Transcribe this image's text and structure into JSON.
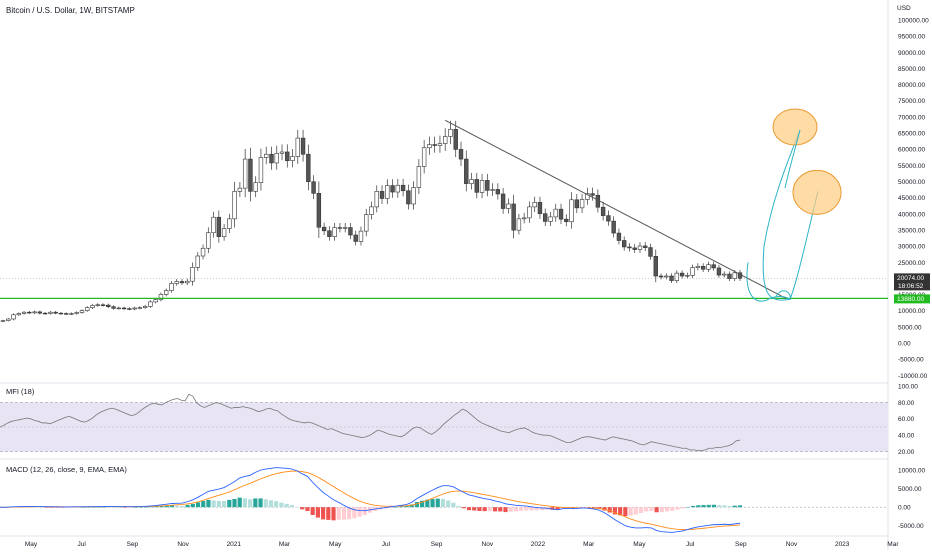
{
  "chart_data": {
    "type": "candlestick",
    "title": "Bitcoin / U.S. Dollar, 1W, BITSTAMP",
    "currency": "USD",
    "price_ticks": [
      100000,
      95000,
      90000,
      85000,
      80000,
      75000,
      70000,
      65000,
      60000,
      55000,
      50000,
      45000,
      40000,
      35000,
      30000,
      25000,
      20000,
      15000,
      10000,
      5000,
      0,
      -5000,
      -10000
    ],
    "price_ylim": [
      -12000,
      105000
    ],
    "x_ticks": [
      "May",
      "Jul",
      "Sep",
      "Nov",
      "2021",
      "Mar",
      "May",
      "Jul",
      "Sep",
      "Nov",
      "2022",
      "Mar",
      "May",
      "Jul",
      "Sep",
      "Nov",
      "2023",
      "Mar"
    ],
    "last_price": "20074.00",
    "countdown": "18:06:52",
    "support_level": "13880.00",
    "candles_close": [
      7000,
      7500,
      8800,
      9200,
      9600,
      9400,
      9700,
      9300,
      9200,
      9600,
      9300,
      9200,
      9100,
      9200,
      9500,
      10100,
      11000,
      11700,
      11900,
      11800,
      11300,
      10800,
      10900,
      10700,
      10600,
      10900,
      11000,
      11400,
      12800,
      13500,
      15100,
      16300,
      18500,
      19100,
      18700,
      19200,
      23500,
      27000,
      29400,
      34200,
      39000,
      33000,
      35500,
      38500,
      47000,
      48000,
      57000,
      47000,
      49700,
      57500,
      58500,
      55800,
      58800,
      59200,
      56500,
      57800,
      63500,
      58500,
      50000,
      46400,
      35900,
      34800,
      33000,
      35800,
      35600,
      35800,
      33500,
      31500,
      34700,
      39800,
      42200,
      47000,
      44800,
      48800,
      46800,
      48900,
      47200,
      43100,
      48200,
      54700,
      60500,
      61500,
      61200,
      61800,
      64000,
      66200,
      60000,
      57000,
      49400,
      50700,
      46700,
      50400,
      47300,
      47600,
      46200,
      41700,
      43100,
      35000,
      38500,
      38800,
      42200,
      43600,
      40100,
      37700,
      39100,
      41500,
      38400,
      37600,
      44400,
      41900,
      44500,
      46300,
      45800,
      42100,
      39500,
      37800,
      34100,
      31800,
      29800,
      29500,
      29000,
      30100,
      29600,
      26900,
      20800,
      20500,
      20800,
      19400,
      21700,
      20800,
      21000,
      23400,
      23800,
      22900,
      24300,
      23300,
      21100,
      21400,
      20000,
      21800,
      20074
    ],
    "annotation_line": {
      "from_price": 69000,
      "to_price": 13880
    },
    "projections": [
      {
        "circle_price": 66000
      },
      {
        "circle_price": 47000
      }
    ],
    "mfi": {
      "label": "MFI (18)",
      "ticks": [
        100,
        80,
        60,
        40,
        20
      ],
      "ylim": [
        12,
        104
      ],
      "band": [
        20,
        80
      ],
      "mid": 50,
      "values": [
        50,
        52,
        55,
        57,
        58,
        59,
        60,
        61,
        60,
        58,
        57,
        55,
        55,
        54,
        56,
        58,
        60,
        62,
        63,
        61,
        59,
        57,
        56,
        58,
        61,
        65,
        68,
        70,
        72,
        73,
        72,
        70,
        68,
        66,
        64,
        65,
        68,
        72,
        75,
        78,
        79,
        78,
        77,
        80,
        82,
        84,
        85,
        83,
        82,
        90,
        88,
        80,
        76,
        74,
        76,
        78,
        80,
        79,
        77,
        75,
        73,
        74,
        74,
        75,
        74,
        73,
        71,
        69,
        70,
        72,
        73,
        71,
        70,
        66,
        63,
        60,
        58,
        57,
        56,
        55,
        56,
        55,
        53,
        51,
        49,
        47,
        48,
        46,
        44,
        42,
        41,
        40,
        39,
        38,
        37,
        38,
        40,
        43,
        46,
        45,
        43,
        41,
        40,
        39,
        38,
        40,
        44,
        48,
        50,
        49,
        46,
        43,
        41,
        44,
        48,
        53,
        57,
        61,
        65,
        68,
        72,
        70,
        66,
        62,
        58,
        55,
        53,
        51,
        49,
        47,
        45,
        44,
        43,
        45,
        47,
        48,
        49,
        47,
        44,
        42,
        41,
        40,
        40,
        39,
        37,
        35,
        33,
        31,
        31,
        33,
        35,
        37,
        38,
        38,
        37,
        36,
        35,
        34,
        36,
        38,
        37,
        36,
        35,
        34,
        33,
        31,
        29,
        28,
        30,
        32,
        31,
        30,
        29,
        28,
        27,
        26,
        25,
        24,
        24,
        22,
        22,
        21,
        21,
        22,
        24,
        24,
        25,
        25,
        26,
        27,
        29,
        33,
        34
      ]
    },
    "macd": {
      "label": "MACD (12, 26, close, 9, EMA, EMA)",
      "ticks": [
        10000,
        5000,
        0,
        -5000
      ],
      "ylim": [
        -7500,
        13000
      ],
      "macd_line": [
        0,
        -30,
        60,
        150,
        180,
        200,
        200,
        180,
        160,
        130,
        110,
        90,
        80,
        80,
        90,
        100,
        110,
        130,
        150,
        170,
        180,
        170,
        160,
        150,
        140,
        140,
        150,
        170,
        250,
        350,
        480,
        650,
        820,
        1000,
        1060,
        1120,
        1500,
        2000,
        2700,
        3500,
        4300,
        4600,
        4900,
        5300,
        6100,
        6900,
        7900,
        8300,
        8600,
        9400,
        10000,
        10300,
        10500,
        10700,
        10600,
        10500,
        10300,
        9800,
        9000,
        8300,
        6700,
        5300,
        4000,
        3000,
        2000,
        1300,
        500,
        -200,
        -700,
        -900,
        -950,
        -700,
        -500,
        -300,
        -100,
        100,
        300,
        500,
        700,
        1300,
        2300,
        3100,
        3900,
        4600,
        5300,
        5800,
        5800,
        5500,
        4700,
        4000,
        3300,
        3000,
        2600,
        2300,
        2100,
        1700,
        1400,
        900,
        700,
        500,
        400,
        300,
        100,
        -100,
        -200,
        -300,
        -500,
        -700,
        -400,
        -300,
        -400,
        -300,
        -200,
        -300,
        -500,
        -800,
        -1500,
        -2400,
        -3400,
        -4200,
        -5000,
        -5400,
        -5600,
        -5600,
        -5500,
        -5600,
        -6300,
        -6600,
        -6700,
        -6800,
        -6600,
        -6400,
        -6000,
        -5600,
        -5300,
        -5100,
        -4900,
        -4700,
        -4700,
        -4600,
        -4700,
        -4500,
        -4300
      ],
      "signal_line": [
        0,
        -20,
        0,
        40,
        70,
        100,
        120,
        130,
        140,
        140,
        135,
        125,
        115,
        108,
        104,
        103,
        104,
        109,
        117,
        127,
        137,
        144,
        148,
        148,
        147,
        146,
        147,
        152,
        172,
        208,
        262,
        340,
        436,
        549,
        651,
        745,
        896,
        1117,
        1433,
        1846,
        2337,
        2789,
        3211,
        3629,
        4123,
        4678,
        5322,
        5918,
        6454,
        7043,
        7634,
        8167,
        8634,
        9047,
        9358,
        9586,
        9729,
        9743,
        9594,
        9336,
        8808,
        8107,
        7286,
        6428,
        5543,
        4694,
        3855,
        3044,
        2295,
        1656,
        1135,
        768,
        514,
        351,
        261,
        229,
        243,
        294,
        375,
        560,
        908,
        1346,
        1857,
        2406,
        2985,
        3548,
        3998,
        4298,
        4379,
        4303,
        4103,
        3882,
        3626,
        3361,
        3109,
        2827,
        2542,
        2213,
        1911,
        1629,
        1383,
        1167,
        954,
        743,
        554,
        383,
        206,
        25,
        -60,
        -108,
        -166,
        -193,
        -194,
        -215,
        -272,
        -378,
        -602,
        -962,
        -1450,
        -2000,
        -2600,
        -3160,
        -3648,
        -4038,
        -4331,
        -4584,
        -4929,
        -5263,
        -5551,
        -5801,
        -5961,
        -6049,
        -6039,
        -5951,
        -5821,
        -5677,
        -5521,
        -5357,
        -5226,
        -5100,
        -5020,
        -4916,
        -4793
      ]
    },
    "colors": {
      "candle_up": "#ffffff",
      "candle_down": "#555555",
      "candle_wick": "#333333",
      "trendline": "#555555",
      "support": "#22bb22",
      "projection": "#2bb5c9",
      "circle_fill": "#ffcc80",
      "circle_stroke": "#e89a30",
      "mfi_line": "#777777",
      "mfi_band": "#e8e4f3",
      "macd_line": "#2962ff",
      "signal_line": "#ff8c1a",
      "hist_up_strong": "#26a69a",
      "hist_up_weak": "#b2dfdb",
      "hist_down_strong": "#ef5350",
      "hist_down_weak": "#ffcdd2",
      "price_badge": "#333333"
    }
  }
}
